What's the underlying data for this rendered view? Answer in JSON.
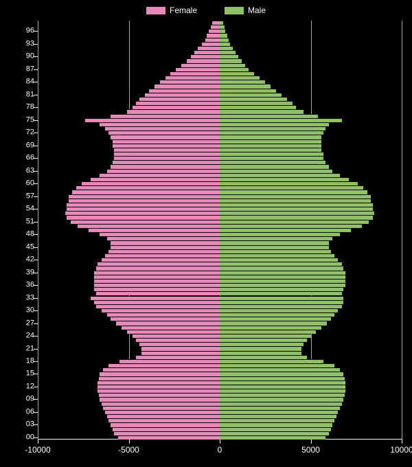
{
  "pyramid": {
    "type": "population_pyramid",
    "background_color": "#000000",
    "text_color": "#ffffff",
    "grid_color": "#aaaaaa",
    "tick_fontsize": 11,
    "legend_fontsize": 12,
    "legend": [
      {
        "label": "Female",
        "color": "#e889bb"
      },
      {
        "label": "Male",
        "color": "#8fc267"
      }
    ],
    "female_color": "#e889bb",
    "male_color": "#8fc267",
    "xlim": [
      -10000,
      10000
    ],
    "xticks": [
      -10000,
      -5000,
      0,
      5000,
      10000
    ],
    "ytick_labels": [
      "00",
      "03",
      "06",
      "09",
      "12",
      "15",
      "18",
      "21",
      "24",
      "27",
      "30",
      "33",
      "36",
      "39",
      "42",
      "45",
      "48",
      "51",
      "54",
      "57",
      "60",
      "63",
      "66",
      "69",
      "72",
      "75",
      "78",
      "81",
      "84",
      "87",
      "90",
      "93",
      "96"
    ],
    "ages": [
      0,
      1,
      2,
      3,
      4,
      5,
      6,
      7,
      8,
      9,
      10,
      11,
      12,
      13,
      14,
      15,
      16,
      17,
      18,
      19,
      20,
      21,
      22,
      23,
      24,
      25,
      26,
      27,
      28,
      29,
      30,
      31,
      32,
      33,
      34,
      35,
      36,
      37,
      38,
      39,
      40,
      41,
      42,
      43,
      44,
      45,
      46,
      47,
      48,
      49,
      50,
      51,
      52,
      53,
      54,
      55,
      56,
      57,
      58,
      59,
      60,
      61,
      62,
      63,
      64,
      65,
      66,
      67,
      68,
      69,
      70,
      71,
      72,
      73,
      74,
      75,
      76,
      77,
      78,
      79,
      80,
      81,
      82,
      83,
      84,
      85,
      86,
      87,
      88,
      89,
      90,
      91,
      92,
      93,
      94,
      95,
      96,
      97,
      98
    ],
    "female": [
      5600,
      5800,
      5900,
      6000,
      6100,
      6200,
      6300,
      6400,
      6500,
      6600,
      6650,
      6700,
      6700,
      6700,
      6650,
      6600,
      6400,
      6100,
      5500,
      4600,
      4300,
      4300,
      4400,
      4600,
      4800,
      5100,
      5400,
      5700,
      6000,
      6200,
      6500,
      6800,
      6900,
      7100,
      6800,
      6900,
      6900,
      6900,
      6900,
      6900,
      6800,
      6700,
      6500,
      6300,
      6100,
      6000,
      6000,
      6200,
      6600,
      7200,
      7800,
      8200,
      8400,
      8500,
      8400,
      8400,
      8300,
      8300,
      8100,
      7900,
      7600,
      7100,
      6600,
      6200,
      6000,
      5900,
      5800,
      5800,
      5800,
      5900,
      5900,
      6000,
      6100,
      6300,
      6600,
      7400,
      6000,
      5100,
      4800,
      4600,
      4400,
      4100,
      3900,
      3600,
      3300,
      3000,
      2700,
      2400,
      2100,
      1800,
      1600,
      1400,
      1200,
      1000,
      800,
      700,
      600,
      500,
      400
    ],
    "male": [
      5800,
      6000,
      6100,
      6200,
      6300,
      6400,
      6500,
      6600,
      6700,
      6800,
      6850,
      6900,
      6900,
      6900,
      6850,
      6800,
      6600,
      6300,
      5700,
      4800,
      4500,
      4500,
      4600,
      4800,
      5000,
      5300,
      5600,
      5900,
      6100,
      6300,
      6500,
      6700,
      6800,
      6800,
      6700,
      6800,
      6900,
      6900,
      6900,
      6900,
      6800,
      6700,
      6500,
      6300,
      6100,
      6000,
      6000,
      6200,
      6600,
      7200,
      7800,
      8200,
      8400,
      8500,
      8400,
      8400,
      8300,
      8300,
      8100,
      7900,
      7600,
      7100,
      6600,
      6200,
      6000,
      5800,
      5700,
      5700,
      5600,
      5600,
      5600,
      5600,
      5700,
      5800,
      6000,
      6700,
      5400,
      4600,
      4200,
      4000,
      3700,
      3400,
      3100,
      2800,
      2500,
      2200,
      1900,
      1600,
      1400,
      1200,
      1000,
      850,
      700,
      580,
      480,
      400,
      320,
      260,
      200
    ]
  }
}
